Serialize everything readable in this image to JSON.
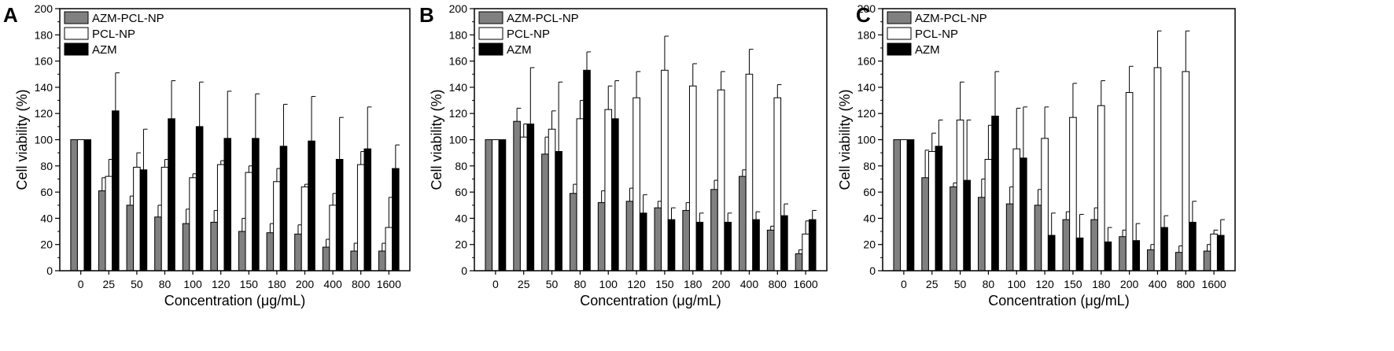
{
  "chart_data": [
    {
      "panel": "A",
      "type": "bar",
      "xlabel": "Concentration (μg/mL)",
      "ylabel": "Cell viability (%)",
      "ylim": [
        0,
        200
      ],
      "yticks": [
        0,
        20,
        40,
        60,
        80,
        100,
        120,
        140,
        160,
        180,
        200
      ],
      "legend_position": "top-left",
      "categories": [
        "0",
        "25",
        "50",
        "80",
        "100",
        "120",
        "150",
        "180",
        "200",
        "400",
        "800",
        "1600"
      ],
      "series": [
        {
          "name": "AZM-PCL-NP",
          "color": "#808080",
          "values": [
            100,
            61,
            50,
            41,
            36,
            37,
            30,
            29,
            28,
            18,
            15,
            15
          ],
          "errors": [
            0,
            10,
            7,
            9,
            11,
            9,
            10,
            7,
            7,
            6,
            6,
            6
          ]
        },
        {
          "name": "PCL-NP",
          "color": "#ffffff",
          "values": [
            100,
            72,
            79,
            79,
            71,
            81,
            75,
            68,
            64,
            50,
            81,
            33
          ],
          "errors": [
            0,
            13,
            11,
            6,
            3,
            3,
            5,
            10,
            2,
            9,
            10,
            23
          ]
        },
        {
          "name": "AZM",
          "color": "#000000",
          "values": [
            100,
            122,
            77,
            116,
            110,
            101,
            101,
            95,
            99,
            85,
            93,
            78
          ],
          "errors": [
            0,
            29,
            31,
            29,
            34,
            36,
            34,
            32,
            34,
            32,
            32,
            18
          ]
        }
      ]
    },
    {
      "panel": "B",
      "type": "bar",
      "xlabel": "Concentration (μg/mL)",
      "ylabel": "Cell viability (%)",
      "ylim": [
        0,
        200
      ],
      "yticks": [
        0,
        20,
        40,
        60,
        80,
        100,
        120,
        140,
        160,
        180,
        200
      ],
      "legend_position": "top-left",
      "categories": [
        "0",
        "25",
        "50",
        "80",
        "100",
        "120",
        "150",
        "180",
        "200",
        "400",
        "800",
        "1600"
      ],
      "series": [
        {
          "name": "AZM-PCL-NP",
          "color": "#808080",
          "values": [
            100,
            114,
            89,
            59,
            52,
            53,
            48,
            46,
            62,
            72,
            31,
            13
          ],
          "errors": [
            0,
            10,
            13,
            7,
            9,
            10,
            5,
            6,
            7,
            5,
            3,
            3
          ]
        },
        {
          "name": "PCL-NP",
          "color": "#ffffff",
          "values": [
            100,
            102,
            108,
            116,
            123,
            132,
            153,
            141,
            138,
            150,
            132,
            28
          ],
          "errors": [
            0,
            10,
            14,
            14,
            18,
            20,
            26,
            17,
            14,
            19,
            10,
            10
          ]
        },
        {
          "name": "AZM",
          "color": "#000000",
          "values": [
            100,
            112,
            91,
            153,
            116,
            44,
            39,
            37,
            37,
            39,
            42,
            39
          ],
          "errors": [
            0,
            43,
            53,
            14,
            29,
            14,
            9,
            7,
            7,
            6,
            9,
            7
          ]
        }
      ]
    },
    {
      "panel": "C",
      "type": "bar",
      "xlabel": "Concentration (μg/mL)",
      "ylabel": "Cell viability (%)",
      "ylim": [
        0,
        200
      ],
      "yticks": [
        0,
        20,
        40,
        60,
        80,
        100,
        120,
        140,
        160,
        180,
        200
      ],
      "legend_position": "top-left",
      "categories": [
        "0",
        "25",
        "50",
        "80",
        "100",
        "120",
        "150",
        "180",
        "200",
        "400",
        "800",
        "1600"
      ],
      "series": [
        {
          "name": "AZM-PCL-NP",
          "color": "#808080",
          "values": [
            100,
            71,
            64,
            56,
            51,
            50,
            39,
            39,
            26,
            16,
            14,
            15
          ],
          "errors": [
            0,
            21,
            3,
            14,
            13,
            12,
            6,
            9,
            5,
            4,
            5,
            5
          ]
        },
        {
          "name": "PCL-NP",
          "color": "#ffffff",
          "values": [
            100,
            91,
            115,
            85,
            93,
            101,
            117,
            126,
            136,
            155,
            152,
            28
          ],
          "errors": [
            0,
            14,
            29,
            26,
            31,
            24,
            26,
            19,
            20,
            28,
            31,
            3
          ]
        },
        {
          "name": "AZM",
          "color": "#000000",
          "values": [
            100,
            95,
            69,
            118,
            86,
            27,
            25,
            22,
            23,
            33,
            37,
            27
          ],
          "errors": [
            0,
            20,
            46,
            34,
            39,
            17,
            18,
            11,
            13,
            9,
            16,
            12
          ]
        }
      ]
    }
  ]
}
